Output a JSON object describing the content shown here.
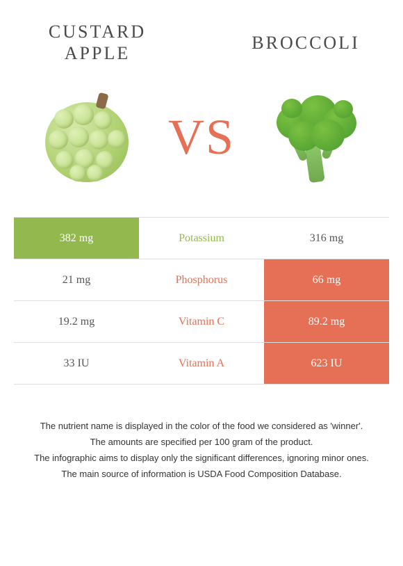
{
  "header": {
    "left_title": "Custard apple",
    "right_title": "Broccoli",
    "vs_text": "VS"
  },
  "colors": {
    "custard": "#92b84e",
    "broccoli": "#e57055",
    "vs": "#e57055",
    "row_border": "#dddddd",
    "text": "#4a4a4a"
  },
  "table": {
    "rows": [
      {
        "nutrient": "Potassium",
        "left": "382 mg",
        "right": "316 mg",
        "winner": "left"
      },
      {
        "nutrient": "Phosphorus",
        "left": "21 mg",
        "right": "66 mg",
        "winner": "right"
      },
      {
        "nutrient": "Vitamin C",
        "left": "19.2 mg",
        "right": "89.2 mg",
        "winner": "right"
      },
      {
        "nutrient": "Vitamin A",
        "left": "33 IU",
        "right": "623 IU",
        "winner": "right"
      }
    ]
  },
  "footer": {
    "line1": "The nutrient name is displayed in the color of the food we considered as 'winner'.",
    "line2": "The amounts are specified per 100 gram of the product.",
    "line3": "The infographic aims to display only the significant differences, ignoring minor ones.",
    "line4": "The main source of information is USDA Food Composition Database."
  }
}
